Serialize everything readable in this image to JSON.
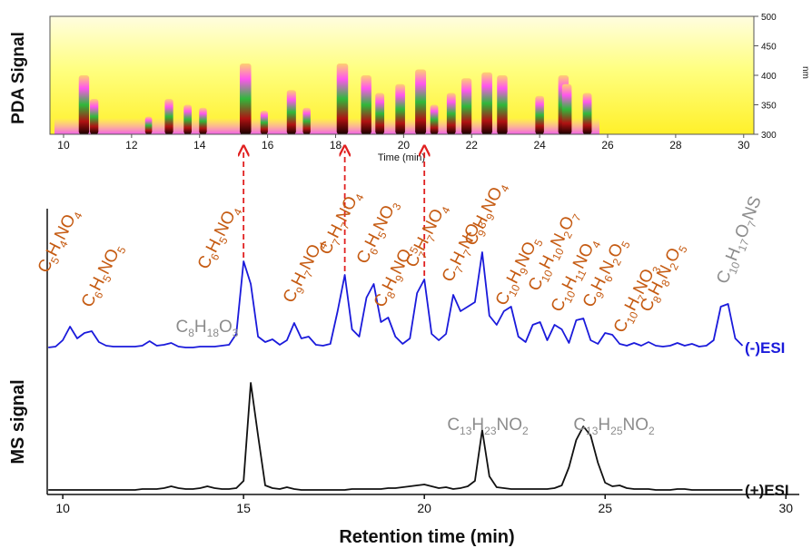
{
  "chart_data": [
    {
      "type": "heatmap",
      "y_label": "PDA Signal",
      "x_label": "Time (min)",
      "y2_label": "nm",
      "x": [
        10.6,
        10.9,
        12.5,
        13.1,
        13.65,
        14.1,
        15.35,
        15.9,
        16.7,
        17.15,
        18.2,
        18.9,
        19.3,
        19.9,
        20.5,
        20.9,
        21.4,
        21.85,
        22.45,
        22.9,
        24.0,
        24.7,
        24.8,
        25.4
      ],
      "values": [
        400,
        360,
        330,
        360,
        350,
        345,
        420,
        340,
        375,
        345,
        420,
        400,
        370,
        385,
        410,
        350,
        370,
        395,
        405,
        400,
        365,
        400,
        385,
        370
      ],
      "xlim": [
        9.6,
        30.3
      ],
      "xticks": [
        10,
        12,
        14,
        16,
        18,
        20,
        22,
        24,
        26,
        28,
        30
      ],
      "ylim": [
        300,
        500
      ],
      "yticks": [
        300,
        350,
        400,
        450,
        500
      ]
    },
    {
      "type": "line",
      "x_label": "Retention time (min)",
      "y_label": "MS signal",
      "x": [
        9.6,
        9.8,
        10.0,
        10.2,
        10.4,
        10.6,
        10.8,
        11.0,
        11.2,
        11.4,
        11.6,
        11.8,
        12.0,
        12.2,
        12.4,
        12.6,
        12.8,
        13.0,
        13.2,
        13.4,
        13.6,
        13.8,
        14.0,
        14.2,
        14.4,
        14.6,
        14.8,
        15.0,
        15.2,
        15.4,
        15.6,
        15.8,
        16.0,
        16.2,
        16.4,
        16.6,
        16.8,
        17.0,
        17.2,
        17.4,
        17.6,
        17.8,
        18.0,
        18.2,
        18.4,
        18.6,
        18.8,
        19.0,
        19.2,
        19.4,
        19.6,
        19.8,
        20.0,
        20.2,
        20.4,
        20.6,
        20.8,
        21.0,
        21.2,
        21.4,
        21.6,
        21.8,
        22.0,
        22.2,
        22.4,
        22.6,
        22.8,
        23.0,
        23.2,
        23.4,
        23.6,
        23.8,
        24.0,
        24.2,
        24.4,
        24.6,
        24.8,
        25.0,
        25.2,
        25.4,
        25.6,
        25.8,
        26.0,
        26.2,
        26.4,
        26.6,
        26.8,
        27.0,
        27.2,
        27.4,
        27.6,
        27.8,
        28.0,
        28.2,
        28.4,
        28.6,
        28.8,
        29.0,
        29.2,
        29.4,
        29.6,
        29.8,
        30.0,
        30.2,
        30.4
      ],
      "series": [
        {
          "name": "(-)ESI",
          "color": "#1a1adb",
          "values": [
            0,
            1,
            8,
            23,
            10,
            16,
            18,
            6,
            2,
            1,
            1,
            1,
            1,
            2,
            7,
            2,
            3,
            5,
            1,
            0,
            0,
            1,
            1,
            1,
            2,
            3,
            15,
            95,
            70,
            12,
            6,
            9,
            3,
            8,
            27,
            10,
            12,
            3,
            2,
            4,
            40,
            80,
            20,
            12,
            55,
            70,
            28,
            33,
            12,
            4,
            10,
            60,
            75,
            15,
            8,
            15,
            58,
            40,
            45,
            50,
            105,
            35,
            25,
            40,
            45,
            12,
            6,
            25,
            28,
            8,
            25,
            20,
            5,
            30,
            32,
            8,
            4,
            16,
            14,
            4,
            2,
            5,
            2,
            6,
            2,
            1,
            2,
            5,
            2,
            4,
            1,
            2,
            8,
            45,
            48,
            10,
            2,
            null,
            null,
            null,
            null,
            null,
            null,
            null,
            null
          ]
        },
        {
          "name": "(+)ESI",
          "color": "#111111",
          "values": [
            0,
            0,
            0,
            0,
            0,
            0,
            0,
            0,
            0,
            0,
            0,
            0,
            0,
            1,
            1,
            1,
            2,
            4,
            2,
            1,
            1,
            2,
            4,
            2,
            1,
            1,
            2,
            10,
            118,
            60,
            5,
            2,
            1,
            3,
            1,
            0,
            0,
            0,
            0,
            0,
            0,
            0,
            1,
            1,
            1,
            1,
            1,
            2,
            2,
            3,
            4,
            5,
            6,
            4,
            2,
            3,
            1,
            2,
            4,
            10,
            66,
            15,
            3,
            2,
            1,
            1,
            1,
            1,
            1,
            1,
            2,
            5,
            25,
            55,
            70,
            60,
            30,
            8,
            4,
            5,
            2,
            1,
            1,
            1,
            0,
            0,
            0,
            1,
            1,
            0,
            0,
            0,
            0,
            0,
            0,
            0,
            0,
            null,
            null,
            null,
            null,
            null,
            null,
            null,
            null
          ]
        }
      ],
      "xlim": [
        9.57,
        30.37
      ],
      "xticks": [
        10,
        15,
        20,
        25,
        30
      ],
      "annotations": [
        {
          "text": "C5H4NO4",
          "color": "#c55a11"
        },
        {
          "text": "C6H5NO5",
          "color": "#c55a11"
        },
        {
          "text": "C6H5NO4",
          "color": "#c55a11"
        },
        {
          "text": "C9H7NO4",
          "color": "#c55a11"
        },
        {
          "text": "C7H7NO4",
          "color": "#c55a11"
        },
        {
          "text": "C6H5NO3",
          "color": "#c55a11"
        },
        {
          "text": "C8H9NO5",
          "color": "#c55a11"
        },
        {
          "text": "C7H7NO4",
          "color": "#c55a11"
        },
        {
          "text": "C7H7NO3",
          "color": "#c55a11"
        },
        {
          "text": "C9H9NO4",
          "color": "#c55a11"
        },
        {
          "text": "C10H9NO5",
          "color": "#c55a11"
        },
        {
          "text": "C10H10N2O7",
          "color": "#c55a11"
        },
        {
          "text": "C10H11NO4",
          "color": "#c55a11"
        },
        {
          "text": "C9H6N2O5",
          "color": "#c55a11"
        },
        {
          "text": "C10H7NO3",
          "color": "#c55a11"
        },
        {
          "text": "C8H8N2O5",
          "color": "#c55a11"
        },
        {
          "text": "C10H17O7NS",
          "color": "#8c8c8c"
        },
        {
          "text": "C8H18O3",
          "color": "#8c8c8c"
        },
        {
          "text": "C13H23NO2",
          "color": "#8c8c8c"
        },
        {
          "text": "C13H25NO2",
          "color": "#8c8c8c"
        }
      ]
    }
  ]
}
